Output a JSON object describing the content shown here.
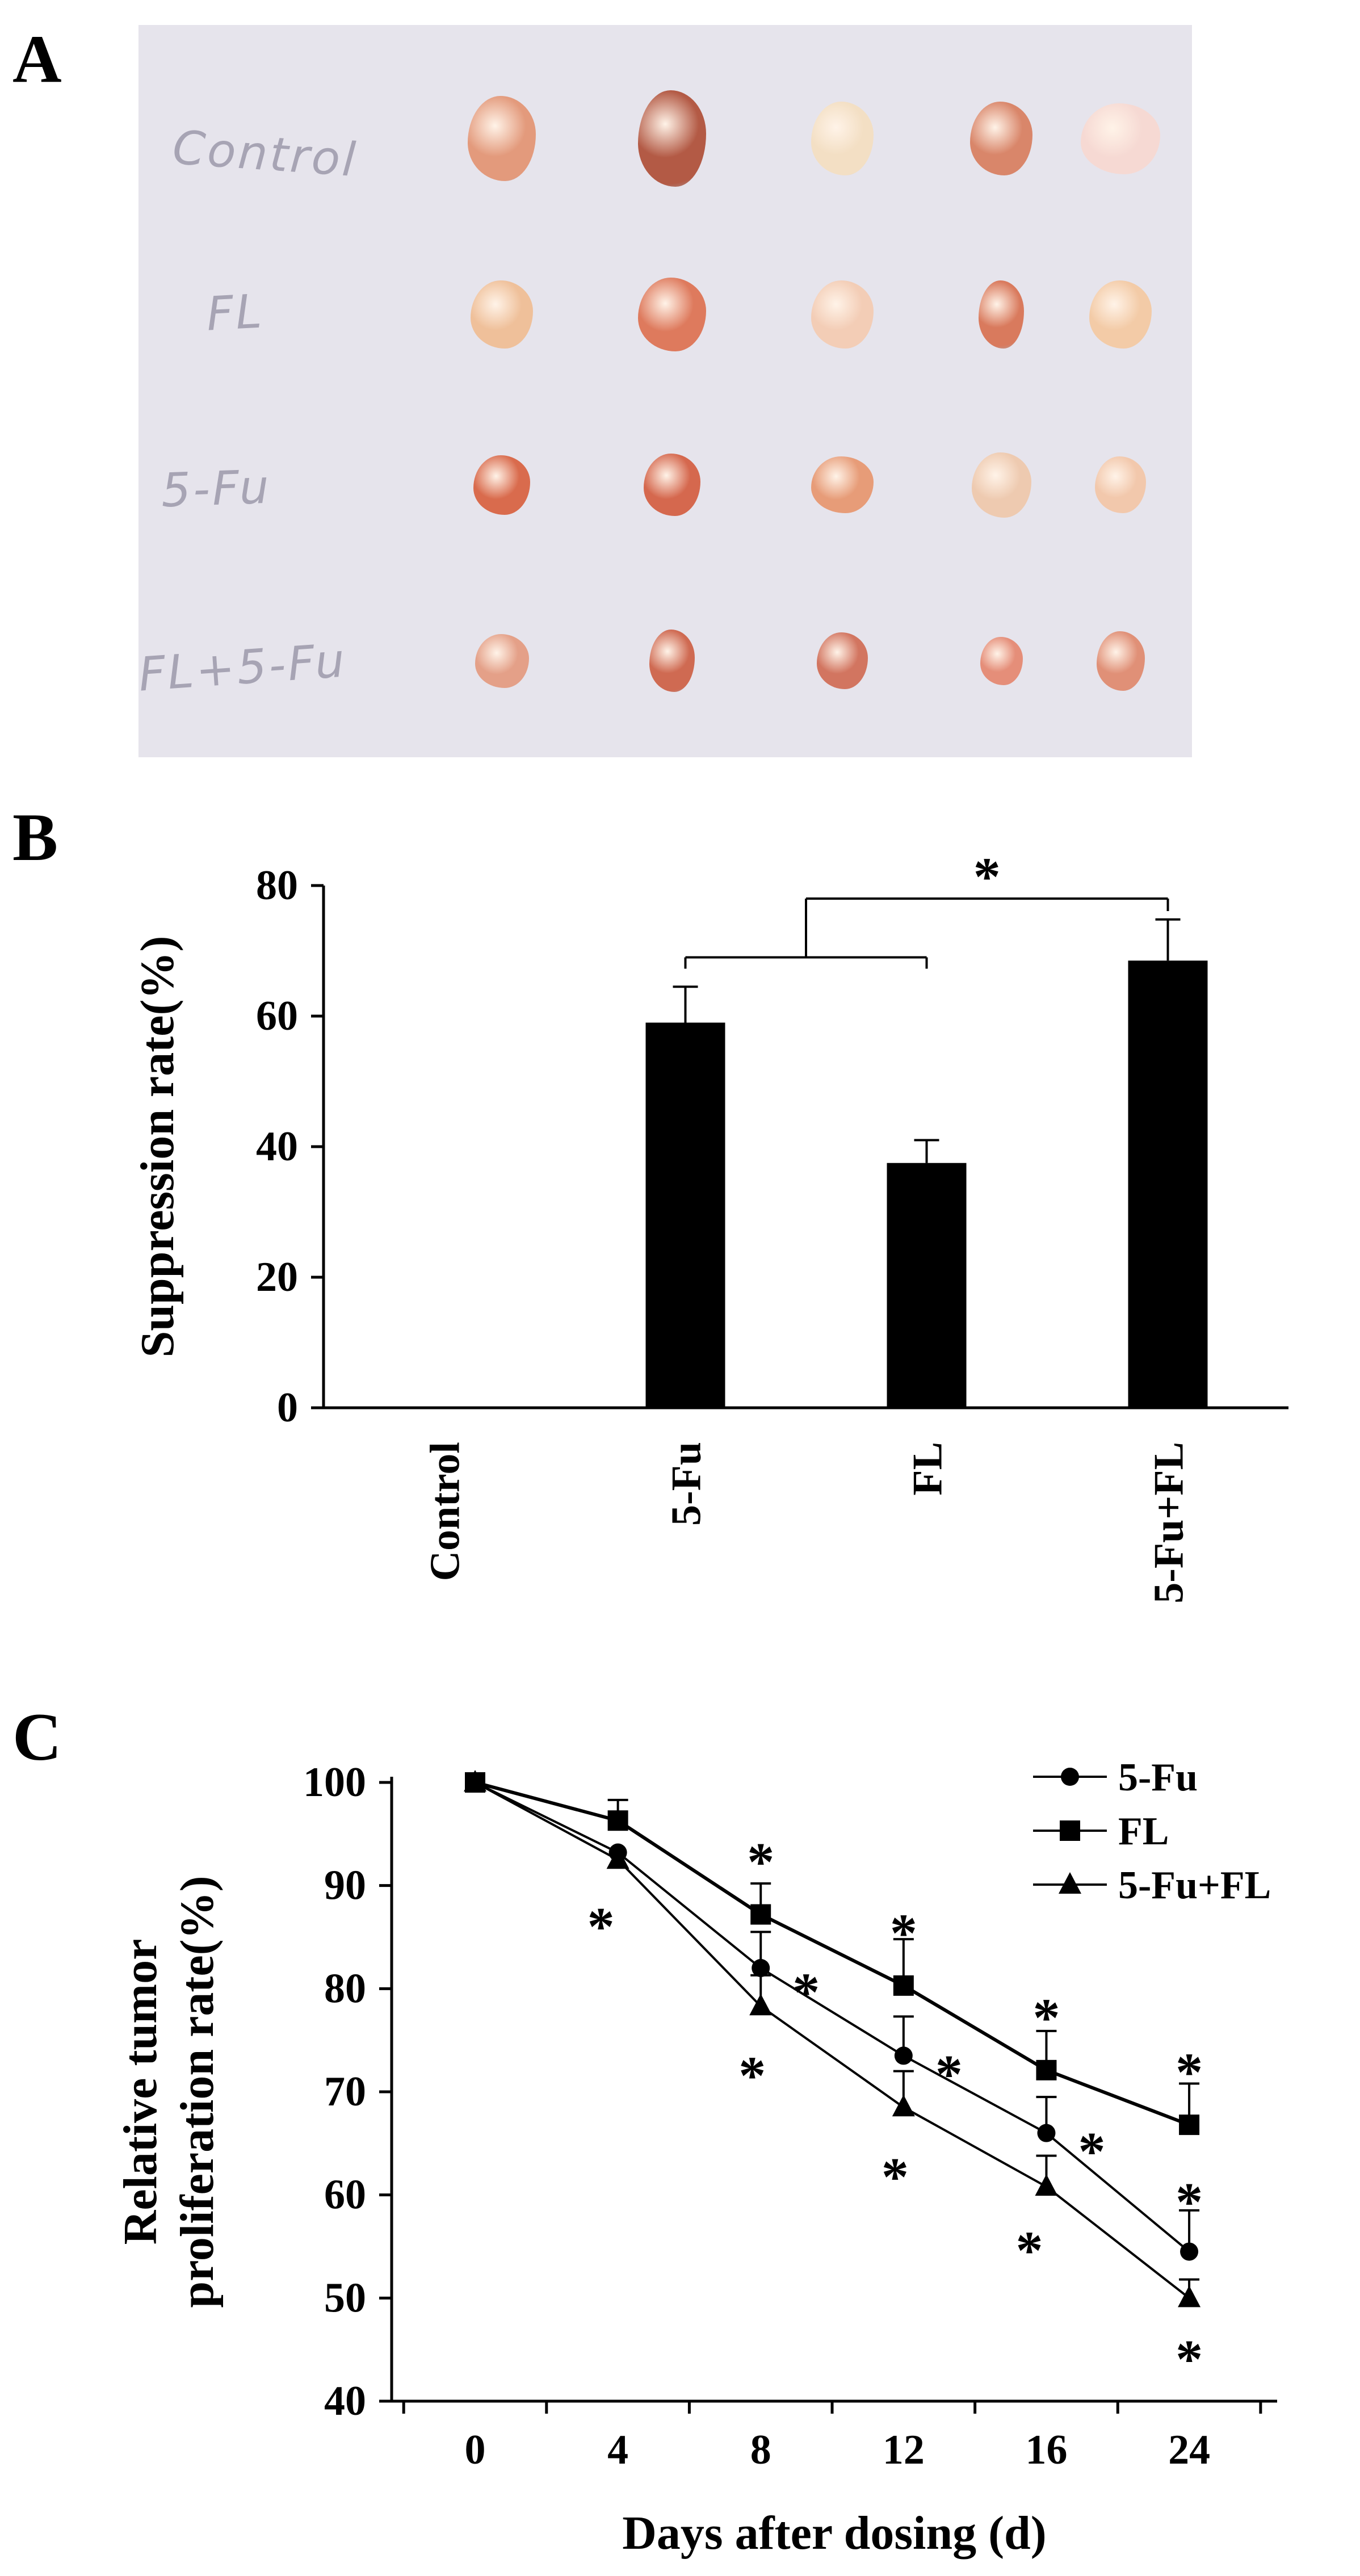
{
  "panels": {
    "a": "A",
    "b": "B",
    "c": "C"
  },
  "photo": {
    "rows": [
      {
        "label": "Control",
        "tumor_colors": [
          "#e39a7c",
          "#b35a45",
          "#f3dfc4",
          "#d9866a",
          "#f6d9d3"
        ]
      },
      {
        "label": "FL",
        "tumor_colors": [
          "#efc09a",
          "#de7a5d",
          "#f3cdb6",
          "#d97a5d",
          "#f3cba7"
        ]
      },
      {
        "label": "5-Fu",
        "tumor_colors": [
          "#d96b4d",
          "#d5684e",
          "#e79c78",
          "#eecab0",
          "#f2c8ac"
        ]
      },
      {
        "label": "FL+5-Fu",
        "tumor_colors": [
          "#e4a088",
          "#cf6a52",
          "#d27560",
          "#e58e79",
          "#e09077"
        ]
      }
    ]
  },
  "chart_data": [
    {
      "type": "bar",
      "ylabel": "Suppression rate(%)",
      "categories": [
        "Control",
        "5-Fu",
        "FL",
        "5-Fu+FL"
      ],
      "values": [
        0,
        59,
        37.5,
        68.5
      ],
      "errors": [
        0,
        5.5,
        3.5,
        6.3
      ],
      "ylim": [
        0,
        80
      ],
      "yticks": [
        0,
        20,
        40,
        60,
        80
      ],
      "significance": {
        "label": "*",
        "between": [
          "5-Fu",
          "FL"
        ],
        "and": "5-Fu+FL"
      },
      "bar_color": "#000000",
      "grid": false
    },
    {
      "type": "line",
      "xlabel": "Days after dosing (d)",
      "ylabel_lines": [
        "Relative tumor",
        "proliferation rate(%)"
      ],
      "x": [
        0,
        4,
        8,
        12,
        16,
        24
      ],
      "ylim": [
        40,
        100
      ],
      "yticks": [
        40,
        50,
        60,
        70,
        80,
        90,
        100
      ],
      "grid": false,
      "legend_position": "top-right",
      "series": [
        {
          "name": "5-Fu",
          "marker": "diamond-circle",
          "values": [
            100,
            93.2,
            82,
            73.5,
            66,
            54.5
          ],
          "errors": [
            0,
            0,
            3.5,
            3.8,
            3.5,
            4
          ]
        },
        {
          "name": "FL",
          "marker": "square",
          "values": [
            100,
            96.3,
            87.2,
            80.3,
            72.1,
            66.8
          ],
          "errors": [
            0,
            2,
            3,
            4.5,
            3.8,
            4
          ]
        },
        {
          "name": "5-Fu+FL",
          "marker": "triangle",
          "values": [
            100,
            92.5,
            78.3,
            68.5,
            60.8,
            50
          ],
          "errors": [
            0,
            0,
            3,
            3.5,
            3,
            1.8
          ]
        }
      ],
      "legend_labels": [
        "5-Fu",
        "FL",
        "5-Fu+FL"
      ],
      "significance_marks": "*"
    }
  ]
}
